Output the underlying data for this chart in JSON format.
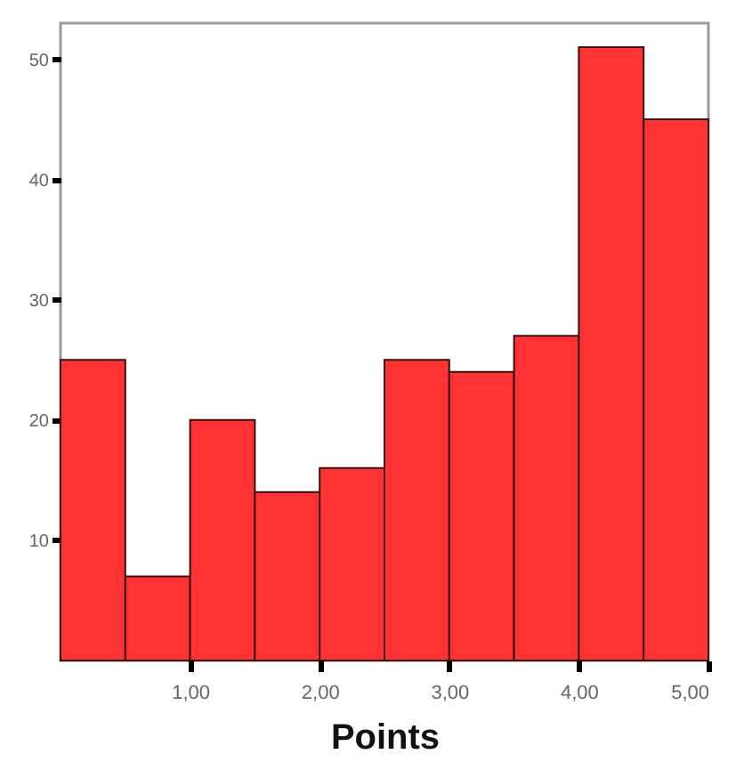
{
  "chart_data": {
    "type": "histogram",
    "xlabel": "Points",
    "bins": [
      0,
      0.5,
      1,
      1.5,
      2,
      2.5,
      3,
      3.5,
      4,
      4.5,
      5
    ],
    "values": [
      25,
      7,
      20,
      14,
      16,
      25,
      24,
      27,
      51,
      45
    ],
    "color": "#ff3333",
    "xlim": [
      0,
      5
    ],
    "xticks": [
      {
        "value": 1,
        "label": "1,00"
      },
      {
        "value": 2,
        "label": "2,00"
      },
      {
        "value": 3,
        "label": "3,00"
      },
      {
        "value": 4,
        "label": "4,00"
      },
      {
        "value": 5,
        "label": "5,00"
      }
    ],
    "ylim": [
      0,
      53
    ],
    "yticks": [
      10,
      20,
      30,
      40,
      50
    ],
    "grid": false
  }
}
